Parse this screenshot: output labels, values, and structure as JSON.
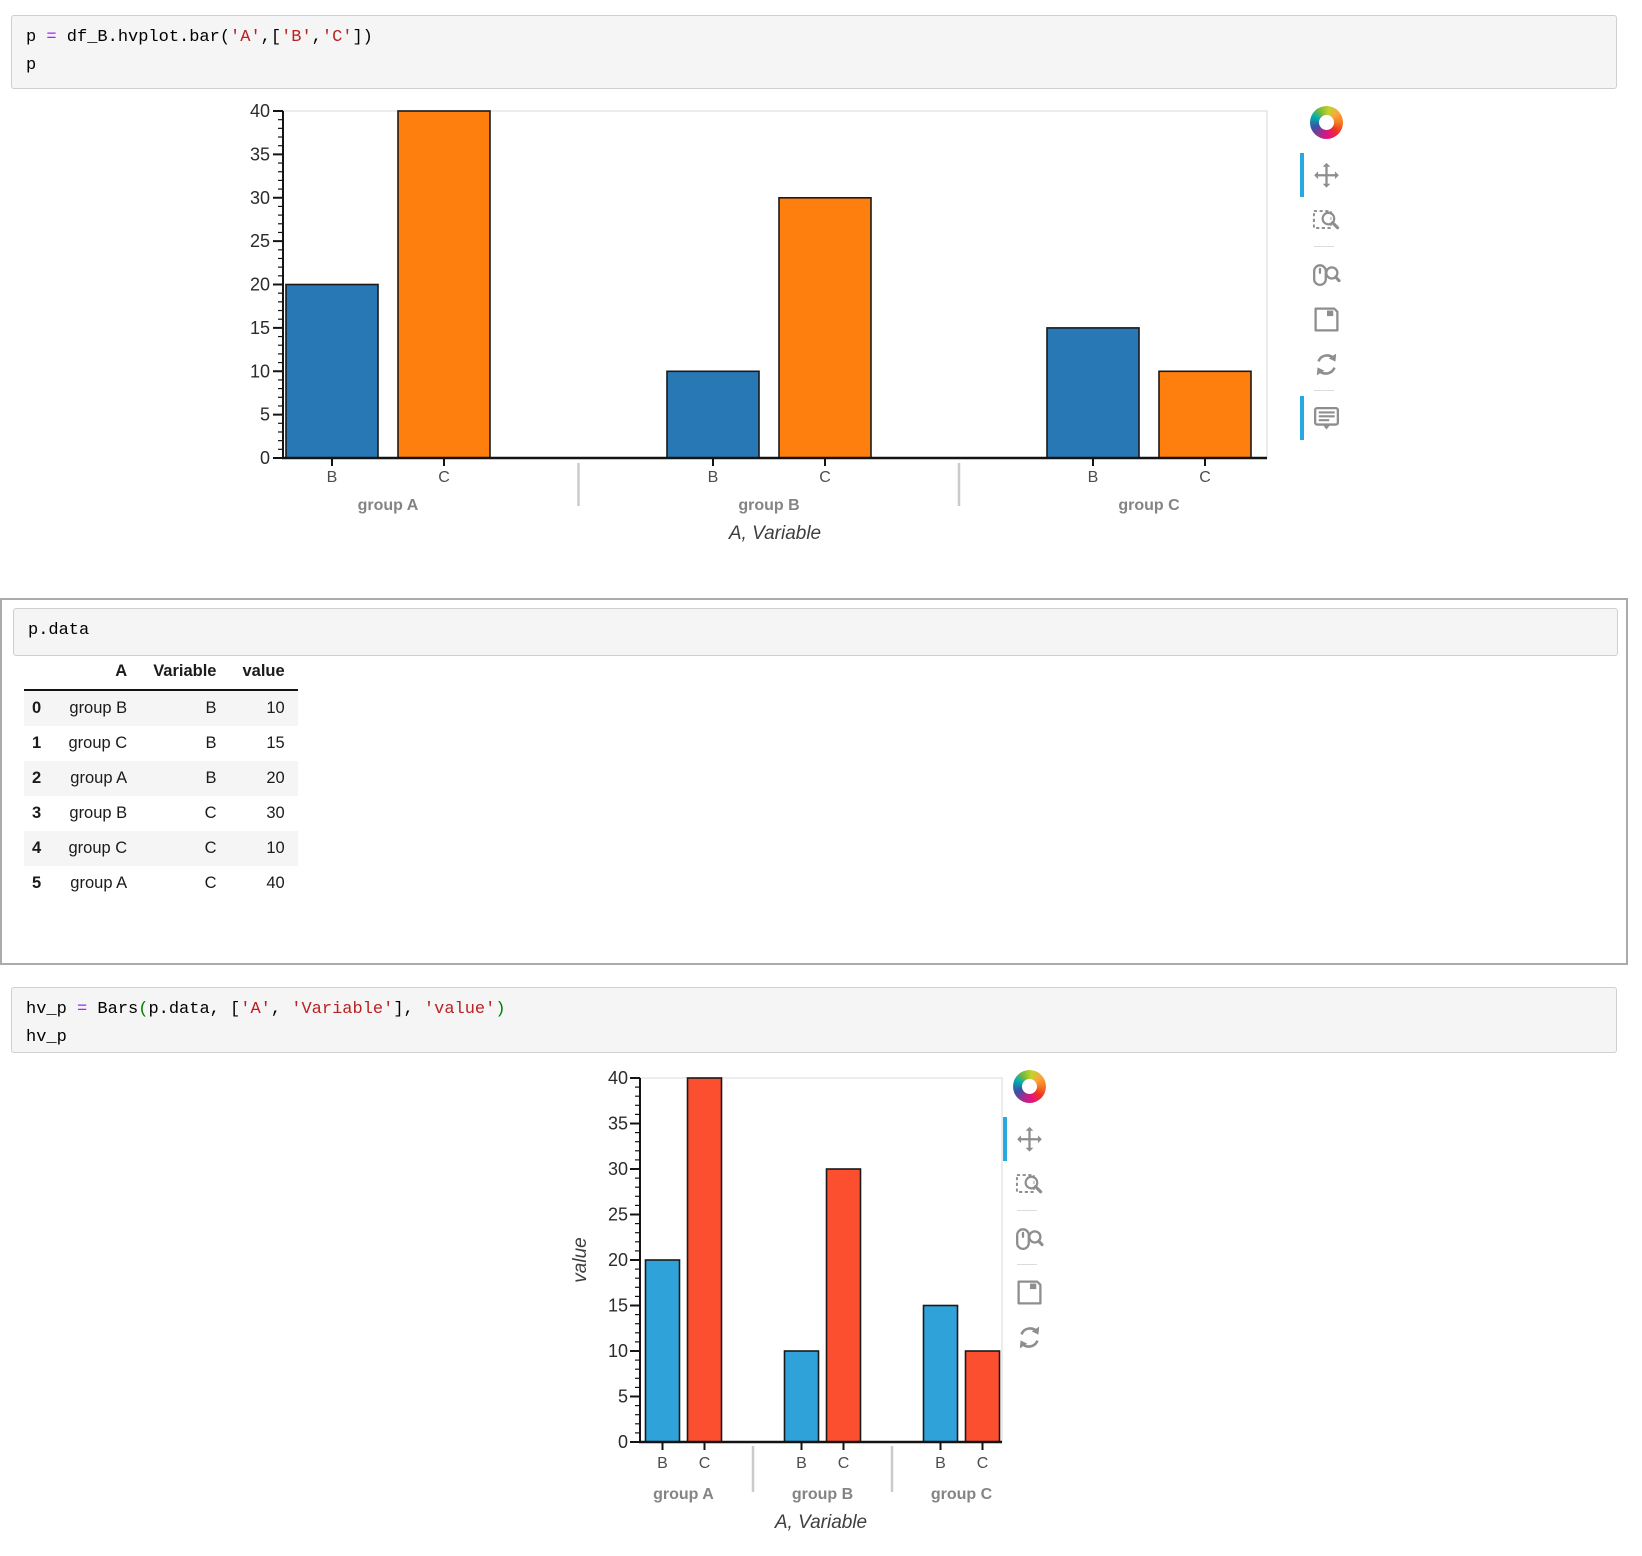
{
  "notebook": {
    "cells": [
      {
        "id": "cell1",
        "lines": [
          [
            [
              "pl",
              "p "
            ],
            [
              "op",
              "="
            ],
            [
              "pl",
              " df_B.hvplot.bar("
            ],
            [
              "st",
              "'A'"
            ],
            [
              "pl",
              ",["
            ],
            [
              "st",
              "'B'"
            ],
            [
              "pl",
              ","
            ],
            [
              "st",
              "'C'"
            ],
            [
              "pl",
              "])"
            ]
          ],
          [
            [
              "pl",
              "p"
            ]
          ]
        ]
      },
      {
        "id": "cell2",
        "lines": [
          [
            [
              "pl",
              "p.data"
            ]
          ]
        ]
      },
      {
        "id": "cell3",
        "lines": [
          [
            [
              "pl",
              "hv_p "
            ],
            [
              "op",
              "="
            ],
            [
              "pl",
              " Bars"
            ],
            [
              "br",
              "("
            ],
            [
              "pl",
              "p.data, ["
            ],
            [
              "st",
              "'A'"
            ],
            [
              "pl",
              ", "
            ],
            [
              "st",
              "'Variable'"
            ],
            [
              "pl",
              "], "
            ],
            [
              "st",
              "'value'"
            ],
            [
              "br",
              ")"
            ]
          ],
          [
            [
              "pl",
              "hv_p"
            ]
          ]
        ]
      }
    ]
  },
  "table": {
    "columns": [
      "A",
      "Variable",
      "value"
    ],
    "index": [
      "0",
      "1",
      "2",
      "3",
      "4",
      "5"
    ],
    "rows": [
      [
        "group B",
        "B",
        "10"
      ],
      [
        "group C",
        "B",
        "15"
      ],
      [
        "group A",
        "B",
        "20"
      ],
      [
        "group B",
        "C",
        "30"
      ],
      [
        "group C",
        "C",
        "10"
      ],
      [
        "group A",
        "C",
        "40"
      ]
    ]
  },
  "chart_data": [
    {
      "id": "chart1",
      "type": "bar",
      "title": "",
      "xlabel": "A, Variable",
      "ylabel": "",
      "ylim": [
        0,
        40
      ],
      "ytick_step": 5,
      "grid": false,
      "groups": [
        "group A",
        "group B",
        "group C"
      ],
      "subcategories": [
        "B",
        "C"
      ],
      "series": [
        {
          "name": "B",
          "color": "#2878b5",
          "values": [
            20,
            10,
            15
          ]
        },
        {
          "name": "C",
          "color": "#ff7f0e",
          "values": [
            40,
            30,
            10
          ]
        }
      ],
      "tools": [
        "bokeh-logo",
        "pan",
        "box-zoom",
        "divider",
        "wheel-zoom",
        "save",
        "reset",
        "divider",
        "hover"
      ],
      "active_tools": [
        "pan",
        "hover"
      ]
    },
    {
      "id": "chart2",
      "type": "bar",
      "title": "",
      "xlabel": "A, Variable",
      "ylabel": "value",
      "ylim": [
        0,
        40
      ],
      "ytick_step": 5,
      "grid": false,
      "groups": [
        "group A",
        "group B",
        "group C"
      ],
      "subcategories": [
        "B",
        "C"
      ],
      "series": [
        {
          "name": "B",
          "color": "#30a2da",
          "values": [
            20,
            10,
            15
          ]
        },
        {
          "name": "C",
          "color": "#fc4f30",
          "values": [
            40,
            30,
            10
          ]
        }
      ],
      "tools": [
        "bokeh-logo",
        "pan",
        "box-zoom",
        "divider",
        "wheel-zoom",
        "divider",
        "save",
        "reset"
      ],
      "active_tools": [
        "pan"
      ]
    }
  ],
  "style": {
    "active_tool_color": "#26aae1",
    "tool_icon_color": "#8e8e8e",
    "axis_line_color": "#141414",
    "outline_color": "#e5e5e5",
    "tick_label_color": "#2b2b2b",
    "category_label_color": "#4d4d4d",
    "group_label_color": "#848484",
    "axis_title_color": "#3f3f3f",
    "separator_color": "#cbcbcb",
    "bar_outline_color": "#1a1a1a"
  }
}
